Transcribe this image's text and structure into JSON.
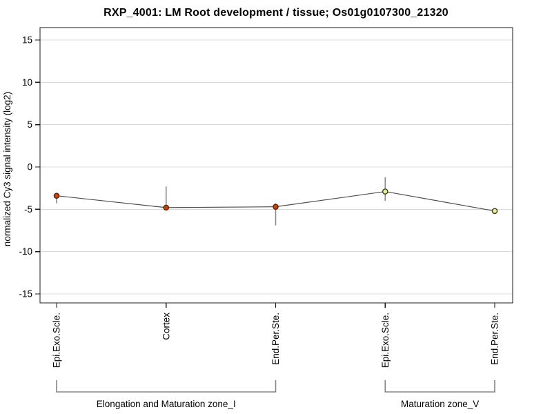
{
  "chart_data": {
    "type": "line",
    "title": "RXP_4001: LM Root development / tissue; Os01g0107300_21320",
    "xlabel": "",
    "ylabel": "normalized Cy3 signal intensity (log2)",
    "ylim": [
      -16.5,
      16.5
    ],
    "yticks": [
      15,
      10,
      5,
      0,
      -5,
      -10,
      -15
    ],
    "grid": "horizontal",
    "legend": "none",
    "categories": [
      "Epi.Exo.Scle.",
      "Cortex",
      "End.Per.Ste.",
      "Epi.Exo.Scle.",
      "End.Per.Ste."
    ],
    "values": [
      -3.4,
      -4.8,
      -4.7,
      -2.9,
      -5.2
    ],
    "error_low": [
      -4.3,
      -5.1,
      -6.9,
      -4.0,
      -5.2
    ],
    "error_high": [
      -3.1,
      -2.3,
      -4.3,
      -1.2,
      -5.2
    ],
    "marker_fill": [
      "#cc4400",
      "#cc4400",
      "#cc4400",
      "#ededa0",
      "#ededa0"
    ],
    "marker_stroke": [
      "#58200a",
      "#58200a",
      "#58200a",
      "#3f3f14",
      "#3f3f14"
    ],
    "groups": [
      {
        "label": "Elongation and Maturation zone_I",
        "start": 0,
        "end": 2
      },
      {
        "label": "Maturation zone_V",
        "start": 3,
        "end": 4
      }
    ],
    "style": {
      "line_color": "#4d4d4d",
      "error_bar_color": "#8a8a8a",
      "grid_color": "#d9d9d9",
      "axis_color": "#1a1a1a",
      "bracket_color": "#858585",
      "text_color": "#000000",
      "background": "#ffffff"
    }
  }
}
